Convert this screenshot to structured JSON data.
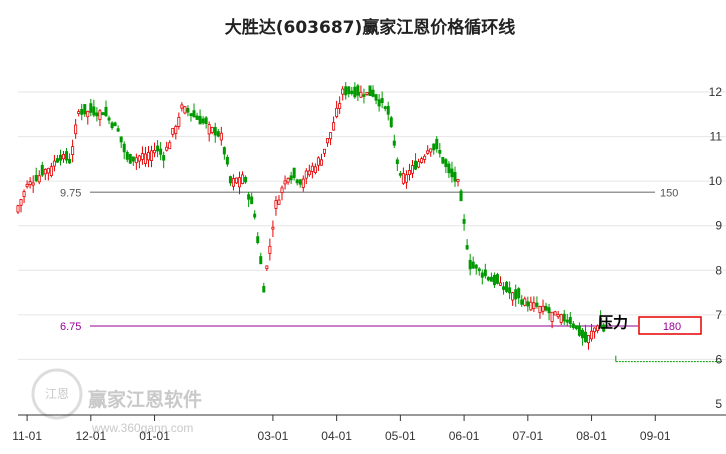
{
  "chart_data": {
    "type": "candlestick",
    "title": "大胜达(603687)赢家江恩价格循环线",
    "y_ticks": [
      "12",
      "11",
      "10",
      "9",
      "8",
      "7",
      "6",
      "5"
    ],
    "y_tick_values": [
      12,
      11,
      10,
      9,
      8,
      7,
      6,
      5
    ],
    "ylim": [
      5,
      12.6
    ],
    "x_ticks": [
      "11-01",
      "12-01",
      "01-01",
      "03-01",
      "04-01",
      "05-01",
      "06-01",
      "07-01",
      "08-01",
      "09-01"
    ],
    "x_tick_indices": [
      3,
      24,
      45,
      84,
      105,
      126,
      147,
      168,
      189,
      210
    ],
    "x_count": 232,
    "grid": true,
    "colors": {
      "up": "#e60000",
      "down": "#009900",
      "resistance_line": "#999999",
      "support_line": "#aa33aa",
      "support_text": "#990099",
      "box": "#e60000"
    },
    "cycle_lines": [
      {
        "left_label": "9.75",
        "value": 9.75,
        "right_label": "150"
      },
      {
        "left_label": "6.75",
        "value": 6.75,
        "right_label": "180"
      }
    ],
    "annotation": "压力",
    "segments": [
      {
        "start": 0,
        "end": 3,
        "from": 9.45,
        "to": 9.9
      },
      {
        "start": 3,
        "end": 14,
        "from": 9.9,
        "to": 10.55
      },
      {
        "start": 14,
        "end": 17,
        "from": 10.55,
        "to": 10.45
      },
      {
        "start": 17,
        "end": 20,
        "from": 10.45,
        "to": 11.55
      },
      {
        "start": 20,
        "end": 28,
        "from": 11.55,
        "to": 11.55
      },
      {
        "start": 28,
        "end": 33,
        "from": 11.55,
        "to": 11.1
      },
      {
        "start": 33,
        "end": 36,
        "from": 11.1,
        "to": 10.45
      },
      {
        "start": 36,
        "end": 45,
        "from": 10.45,
        "to": 10.7
      },
      {
        "start": 45,
        "end": 48,
        "from": 10.7,
        "to": 10.55
      },
      {
        "start": 48,
        "end": 54,
        "from": 10.55,
        "to": 11.65
      },
      {
        "start": 54,
        "end": 62,
        "from": 11.65,
        "to": 11.25
      },
      {
        "start": 62,
        "end": 67,
        "from": 11.25,
        "to": 11.0
      },
      {
        "start": 67,
        "end": 70,
        "from": 11.0,
        "to": 9.95
      },
      {
        "start": 70,
        "end": 74,
        "from": 9.95,
        "to": 10.15
      },
      {
        "start": 74,
        "end": 78,
        "from": 10.15,
        "to": 9.2
      },
      {
        "start": 78,
        "end": 81,
        "from": 9.2,
        "to": 7.6
      },
      {
        "start": 81,
        "end": 85,
        "from": 7.6,
        "to": 9.5
      },
      {
        "start": 85,
        "end": 89,
        "from": 9.5,
        "to": 10.15
      },
      {
        "start": 89,
        "end": 93,
        "from": 10.15,
        "to": 10.0
      },
      {
        "start": 93,
        "end": 100,
        "from": 10.0,
        "to": 10.55
      },
      {
        "start": 100,
        "end": 103,
        "from": 10.55,
        "to": 11.1
      },
      {
        "start": 103,
        "end": 107,
        "from": 11.1,
        "to": 12.0
      },
      {
        "start": 107,
        "end": 117,
        "from": 12.0,
        "to": 11.95
      },
      {
        "start": 117,
        "end": 122,
        "from": 11.95,
        "to": 11.5
      },
      {
        "start": 122,
        "end": 126,
        "from": 11.5,
        "to": 10.05
      },
      {
        "start": 126,
        "end": 131,
        "from": 10.05,
        "to": 10.35
      },
      {
        "start": 131,
        "end": 136,
        "from": 10.35,
        "to": 10.8
      },
      {
        "start": 136,
        "end": 139,
        "from": 10.8,
        "to": 10.6
      },
      {
        "start": 139,
        "end": 142,
        "from": 10.6,
        "to": 10.15
      },
      {
        "start": 142,
        "end": 145,
        "from": 10.15,
        "to": 9.95
      },
      {
        "start": 145,
        "end": 147,
        "from": 9.95,
        "to": 9.0
      },
      {
        "start": 147,
        "end": 149,
        "from": 9.0,
        "to": 8.1
      },
      {
        "start": 149,
        "end": 165,
        "from": 8.1,
        "to": 7.35
      },
      {
        "start": 165,
        "end": 172,
        "from": 7.35,
        "to": 7.15
      },
      {
        "start": 172,
        "end": 178,
        "from": 7.15,
        "to": 6.95
      },
      {
        "start": 178,
        "end": 182,
        "from": 6.95,
        "to": 6.85
      },
      {
        "start": 182,
        "end": 187,
        "from": 6.85,
        "to": 6.4
      },
      {
        "start": 187,
        "end": 191,
        "from": 6.4,
        "to": 6.8
      },
      {
        "start": 191,
        "end": 193,
        "from": 6.8,
        "to": 6.65
      }
    ],
    "projection": {
      "start": 197,
      "end": 232,
      "value": 5.95
    }
  },
  "watermark": {
    "name": "赢家江恩软件",
    "url": "www.360gann.com",
    "logo_text": "江恩"
  }
}
